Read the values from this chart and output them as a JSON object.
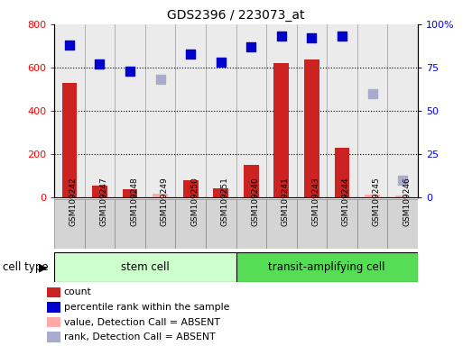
{
  "title": "GDS2396 / 223073_at",
  "samples": [
    "GSM109242",
    "GSM109247",
    "GSM109248",
    "GSM109249",
    "GSM109250",
    "GSM109251",
    "GSM109240",
    "GSM109241",
    "GSM109243",
    "GSM109244",
    "GSM109245",
    "GSM109246"
  ],
  "stem_cell_count": 6,
  "transit_cell_count": 6,
  "stem_cell_label": "stem cell",
  "transit_cell_label": "transit-amplifying cell",
  "cell_type_label": "cell type",
  "left_ylim": [
    0,
    800
  ],
  "left_yticks": [
    0,
    200,
    400,
    600,
    800
  ],
  "right_ylim": [
    0,
    100
  ],
  "right_yticks": [
    0,
    25,
    50,
    75,
    100
  ],
  "right_yticklabels": [
    "0",
    "25",
    "50",
    "75",
    "100%"
  ],
  "count_values": [
    530,
    55,
    35,
    null,
    80,
    40,
    150,
    620,
    635,
    230,
    null,
    null
  ],
  "count_absent_values": [
    null,
    null,
    null,
    15,
    null,
    null,
    null,
    null,
    null,
    null,
    10,
    8
  ],
  "percentile_values": [
    88,
    77,
    73,
    null,
    83,
    78,
    87,
    93,
    92,
    93,
    null,
    null
  ],
  "rank_absent_values": [
    null,
    null,
    null,
    68,
    null,
    null,
    null,
    null,
    null,
    null,
    60,
    10
  ],
  "bar_color": "#cc2222",
  "bar_absent_color": "#ffaaaa",
  "dot_color": "#0000cc",
  "dot_absent_color": "#aaaacc",
  "stem_cell_bg": "#ccffcc",
  "transit_cell_bg": "#55dd55",
  "grid_color": "black",
  "bar_width": 0.5,
  "dot_size": 55,
  "fig_bg": "#ffffff"
}
